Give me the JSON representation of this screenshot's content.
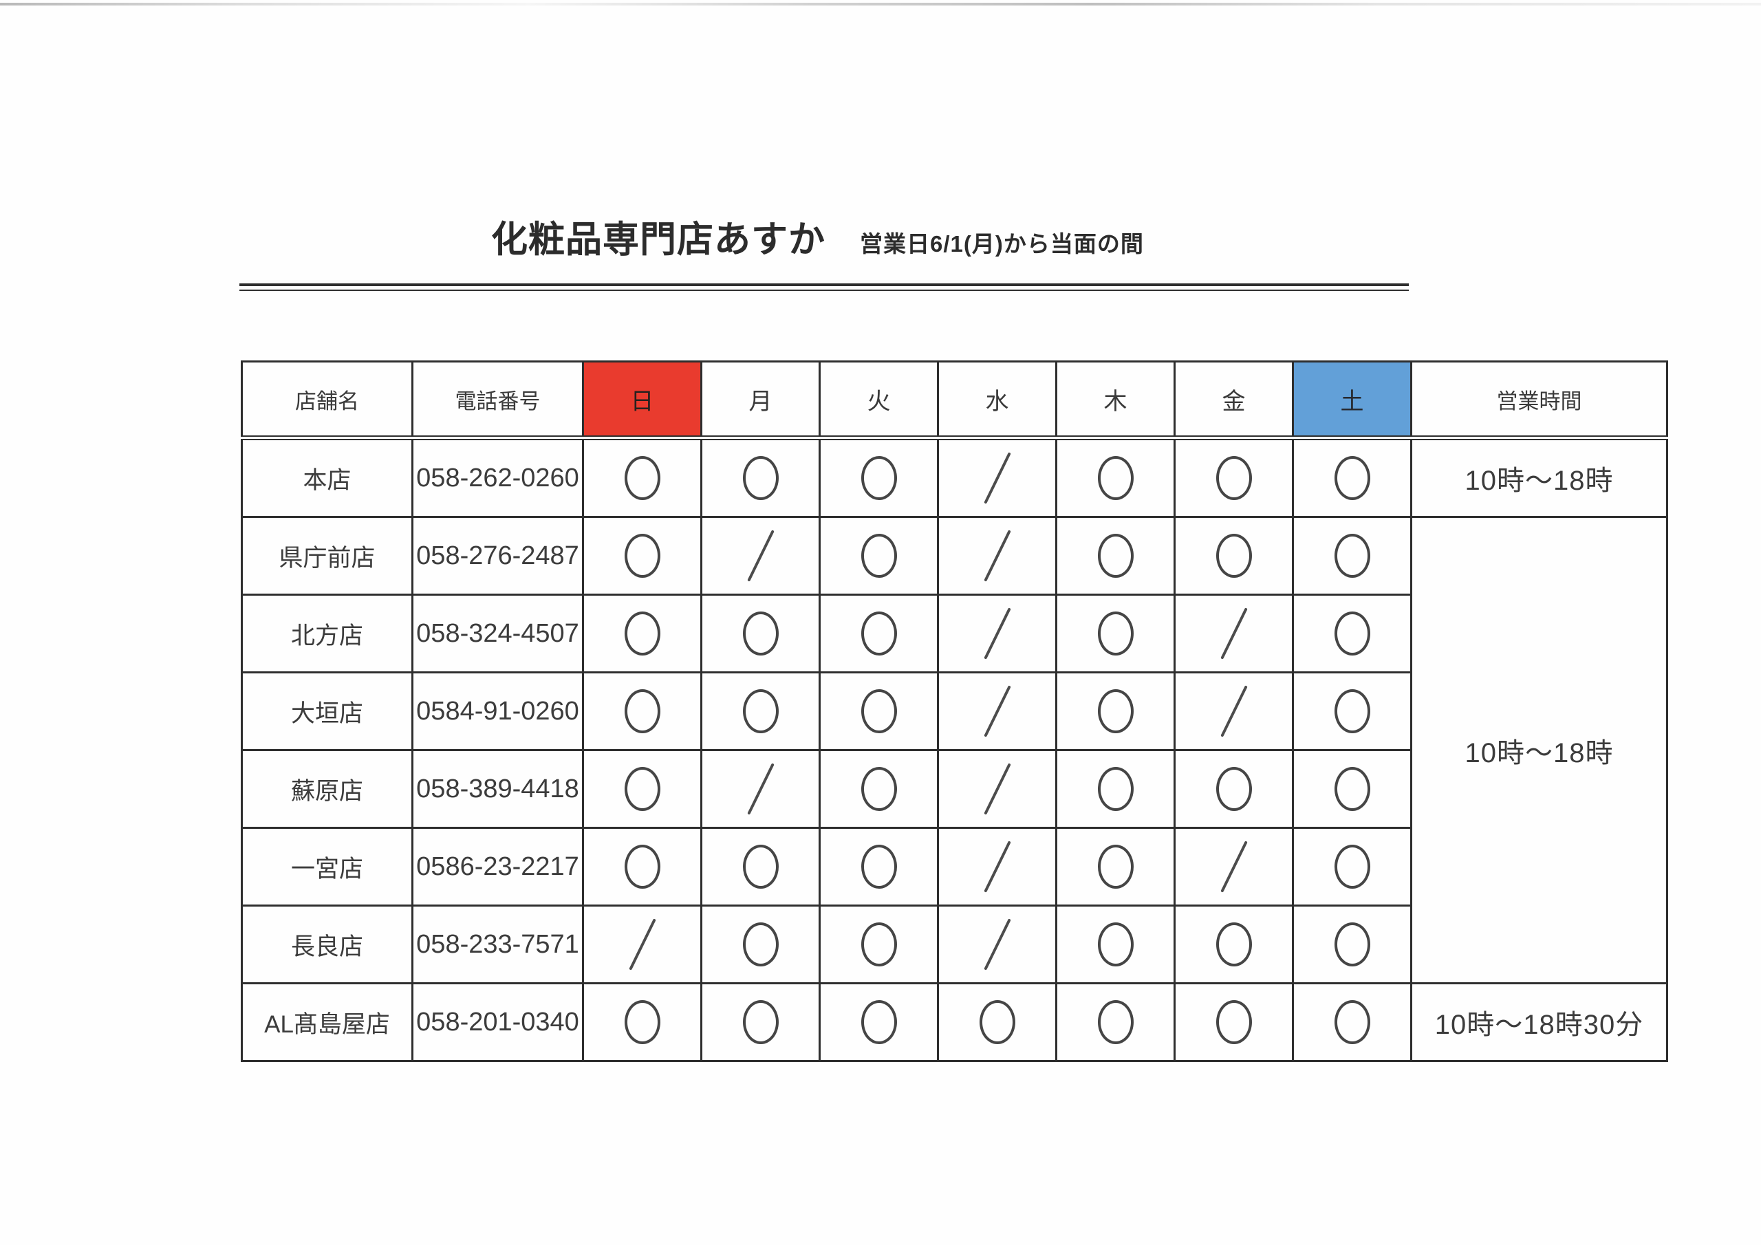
{
  "document": {
    "title": "化粧品専門店あすか",
    "subtitle": "営業日6/1(月)から当面の間"
  },
  "table": {
    "columns": [
      "店舗名",
      "電話番号",
      "日",
      "月",
      "火",
      "水",
      "木",
      "金",
      "土",
      "営業時間"
    ],
    "sunday_highlight_color": "#e93b2e",
    "saturday_highlight_color": "#62a0d8",
    "open_mark": "○",
    "closed_mark": "／",
    "rows": [
      {
        "name": "本店",
        "phone": "058-262-0260",
        "days": [
          "○",
          "○",
          "○",
          "／",
          "○",
          "○",
          "○"
        ],
        "hours": "10時〜18時",
        "hours_rowspan": 1
      },
      {
        "name": "県庁前店",
        "phone": "058-276-2487",
        "days": [
          "○",
          "／",
          "○",
          "／",
          "○",
          "○",
          "○"
        ],
        "hours": "10時〜18時",
        "hours_rowspan": 6
      },
      {
        "name": "北方店",
        "phone": "058-324-4507",
        "days": [
          "○",
          "○",
          "○",
          "／",
          "○",
          "／",
          "○"
        ]
      },
      {
        "name": "大垣店",
        "phone": "0584-91-0260",
        "days": [
          "○",
          "○",
          "○",
          "／",
          "○",
          "／",
          "○"
        ]
      },
      {
        "name": "蘇原店",
        "phone": "058-389-4418",
        "days": [
          "○",
          "／",
          "○",
          "／",
          "○",
          "○",
          "○"
        ]
      },
      {
        "name": "一宮店",
        "phone": "0586-23-2217",
        "days": [
          "○",
          "○",
          "○",
          "／",
          "○",
          "／",
          "○"
        ]
      },
      {
        "name": "長良店",
        "phone": "058-233-7571",
        "days": [
          "／",
          "○",
          "○",
          "／",
          "○",
          "○",
          "○"
        ]
      },
      {
        "name": "AL髙島屋店",
        "phone": "058-201-0340",
        "days": [
          "○",
          "○",
          "○",
          "○",
          "○",
          "○",
          "○"
        ],
        "hours": "10時〜18時30分",
        "hours_rowspan": 1
      }
    ]
  }
}
